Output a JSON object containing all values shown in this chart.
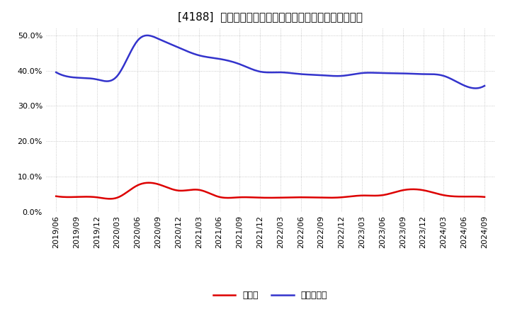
{
  "title": "[4188]  現預金、有利子負債の総資産に対する比率の推移",
  "x_labels": [
    "2019/06",
    "2019/09",
    "2019/12",
    "2020/03",
    "2020/06",
    "2020/09",
    "2020/12",
    "2021/03",
    "2021/06",
    "2021/09",
    "2021/12",
    "2022/03",
    "2022/06",
    "2022/09",
    "2022/12",
    "2023/03",
    "2023/06",
    "2023/09",
    "2023/12",
    "2024/03",
    "2024/06",
    "2024/09"
  ],
  "cash_ratio": [
    4.5,
    4.3,
    4.2,
    4.1,
    7.6,
    7.9,
    6.1,
    6.3,
    4.3,
    4.2,
    4.1,
    4.1,
    4.2,
    4.1,
    4.2,
    4.7,
    4.8,
    6.2,
    6.2,
    4.8,
    4.4,
    4.3
  ],
  "debt_ratio": [
    39.5,
    38.0,
    37.5,
    38.5,
    48.5,
    49.0,
    46.5,
    44.3,
    43.3,
    41.8,
    39.7,
    39.5,
    39.0,
    38.7,
    38.5,
    39.3,
    39.3,
    39.2,
    39.0,
    38.5,
    35.8,
    35.7
  ],
  "cash_color": "#dd0000",
  "debt_color": "#3333cc",
  "background_color": "#ffffff",
  "grid_color": "#bbbbbb",
  "ylim": [
    0,
    52
  ],
  "yticks": [
    0,
    10,
    20,
    30,
    40,
    50
  ],
  "legend_cash": "現預金",
  "legend_debt": "有利子負債",
  "title_fontsize": 11,
  "tick_fontsize": 8,
  "legend_fontsize": 9
}
